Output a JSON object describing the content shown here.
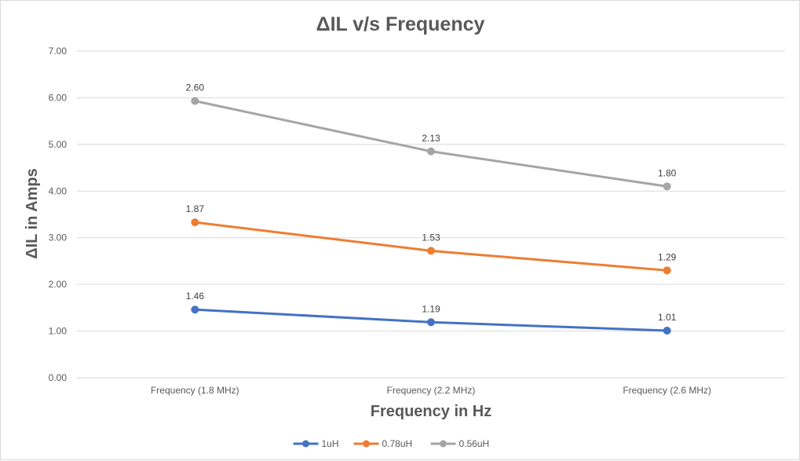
{
  "chart_data": {
    "type": "line",
    "title": "ΔIL v/s Frequency",
    "xlabel": "Frequency in Hz",
    "ylabel": "ΔIL in Amps",
    "categories": [
      "Frequency (1.8 MHz)",
      "Frequency (2.2 MHz)",
      "Frequency (2.6 MHz)"
    ],
    "ylim": [
      0,
      7
    ],
    "ytick_labels": [
      "0.00",
      "1.00",
      "2.00",
      "3.00",
      "4.00",
      "5.00",
      "6.00",
      "7.00"
    ],
    "grid": true,
    "stacked": true,
    "legend_position": "bottom",
    "series": [
      {
        "name": "1uH",
        "color": "#4472c4",
        "values": [
          1.46,
          1.19,
          1.01
        ],
        "labels": [
          "1.46",
          "1.19",
          "1.01"
        ]
      },
      {
        "name": "0.78uH",
        "color": "#ed7d31",
        "values": [
          1.87,
          1.53,
          1.29
        ],
        "labels": [
          "1.87",
          "1.53",
          "1.29"
        ]
      },
      {
        "name": "0.56uH",
        "color": "#a5a5a5",
        "values": [
          2.6,
          2.13,
          1.8
        ],
        "labels": [
          "2.60",
          "2.13",
          "1.80"
        ]
      }
    ]
  }
}
